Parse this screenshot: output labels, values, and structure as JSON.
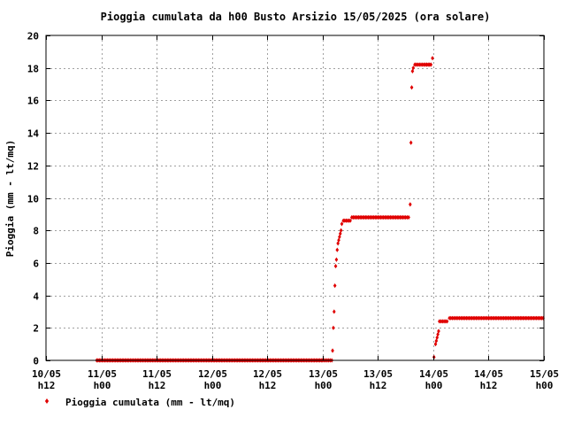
{
  "chart_data": {
    "type": "scatter",
    "title": "Pioggia cumulata da h00 Busto Arsizio 15/05/2025 (ora solare)",
    "ylabel": "Pioggia (mm - lt/mq)",
    "xlabel": "",
    "ylim": [
      0,
      20
    ],
    "yticks": [
      0,
      2,
      4,
      6,
      8,
      10,
      12,
      14,
      16,
      18,
      20
    ],
    "xlim": [
      "10/05 h12",
      "15/05 h00"
    ],
    "xticks": [
      {
        "time": "10/05 h12",
        "date": "10/05",
        "hour": "h12"
      },
      {
        "time": "11/05 h00",
        "date": "11/05",
        "hour": "h00"
      },
      {
        "time": "11/05 h12",
        "date": "11/05",
        "hour": "h12"
      },
      {
        "time": "12/05 h00",
        "date": "12/05",
        "hour": "h00"
      },
      {
        "time": "12/05 h12",
        "date": "12/05",
        "hour": "h12"
      },
      {
        "time": "13/05 h00",
        "date": "13/05",
        "hour": "h00"
      },
      {
        "time": "13/05 h12",
        "date": "13/05",
        "hour": "h12"
      },
      {
        "time": "14/05 h00",
        "date": "14/05",
        "hour": "h00"
      },
      {
        "time": "14/05 h12",
        "date": "14/05",
        "hour": "h12"
      },
      {
        "time": "15/05 h00",
        "date": "15/05",
        "hour": "h00"
      }
    ],
    "grid": true,
    "legend_position": "bottom-left",
    "series": [
      {
        "name": "Pioggia cumulata (mm - lt/mq)",
        "color": "#e00000",
        "marker": "diamond",
        "points": [
          [
            "10/05 23:00",
            0
          ],
          [
            "11/05 06:00",
            0
          ],
          [
            "11/05 12:00",
            0
          ],
          [
            "12/05 00:00",
            0
          ],
          [
            "12/05 12:00",
            0
          ],
          [
            "13/05 00:00",
            0
          ],
          [
            "13/05 02:00",
            0
          ],
          [
            "13/05 02:10",
            0.6
          ],
          [
            "13/05 02:20",
            2.0
          ],
          [
            "13/05 02:30",
            3.0
          ],
          [
            "13/05 02:40",
            4.6
          ],
          [
            "13/05 02:50",
            5.8
          ],
          [
            "13/05 03:00",
            6.2
          ],
          [
            "13/05 03:10",
            6.8
          ],
          [
            "13/05 03:20",
            7.2
          ],
          [
            "13/05 03:30",
            7.4
          ],
          [
            "13/05 03:40",
            7.6
          ],
          [
            "13/05 03:50",
            7.8
          ],
          [
            "13/05 04:00",
            8.0
          ],
          [
            "13/05 04:10",
            8.4
          ],
          [
            "13/05 04:30",
            8.6
          ],
          [
            "13/05 06:00",
            8.6
          ],
          [
            "13/05 06:20",
            8.8
          ],
          [
            "13/05 12:00",
            8.8
          ],
          [
            "13/05 18:00",
            8.8
          ],
          [
            "13/05 18:40",
            8.8
          ],
          [
            "13/05 19:00",
            9.6
          ],
          [
            "13/05 19:10",
            13.4
          ],
          [
            "13/05 19:20",
            16.8
          ],
          [
            "13/05 19:30",
            17.8
          ],
          [
            "13/05 19:40",
            18.0
          ],
          [
            "13/05 20:00",
            18.2
          ],
          [
            "13/05 22:00",
            18.2
          ],
          [
            "13/05 23:30",
            18.2
          ],
          [
            "13/05 23:50",
            18.6
          ],
          [
            "14/05 00:10",
            0.2
          ],
          [
            "14/05 00:30",
            1.0
          ],
          [
            "14/05 00:40",
            1.2
          ],
          [
            "14/05 00:50",
            1.4
          ],
          [
            "14/05 01:00",
            1.6
          ],
          [
            "14/05 01:10",
            1.8
          ],
          [
            "14/05 01:20",
            2.4
          ],
          [
            "14/05 03:00",
            2.4
          ],
          [
            "14/05 03:30",
            2.6
          ],
          [
            "14/05 06:00",
            2.6
          ],
          [
            "14/05 12:00",
            2.6
          ],
          [
            "14/05 18:00",
            2.6
          ],
          [
            "14/05 23:50",
            2.6
          ]
        ]
      }
    ]
  }
}
